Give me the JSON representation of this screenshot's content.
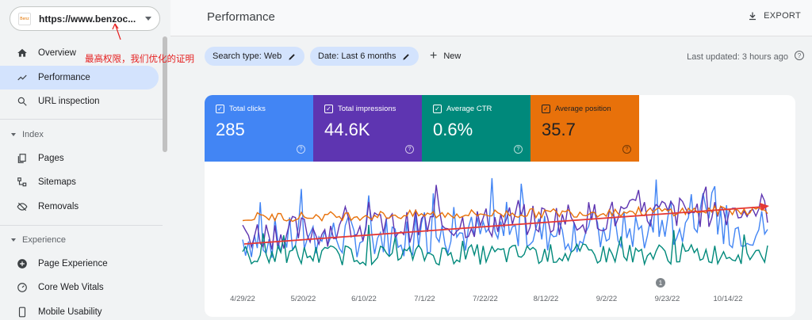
{
  "property": {
    "url": "https://www.benzoc...",
    "favicon_text": "Benz"
  },
  "sidebar": {
    "items": [
      {
        "label": "Overview"
      },
      {
        "label": "Performance"
      },
      {
        "label": "URL inspection"
      }
    ],
    "sections": [
      {
        "label": "Index",
        "items": [
          {
            "label": "Pages"
          },
          {
            "label": "Sitemaps"
          },
          {
            "label": "Removals"
          }
        ]
      },
      {
        "label": "Experience",
        "items": [
          {
            "label": "Page Experience"
          },
          {
            "label": "Core Web Vitals"
          },
          {
            "label": "Mobile Usability"
          }
        ]
      }
    ]
  },
  "header": {
    "title": "Performance",
    "export_label": "EXPORT"
  },
  "annotation": "最高权限，我们优化的证明",
  "filters": {
    "search_type": "Search type: Web",
    "date": "Date: Last 6 months",
    "new_label": "New",
    "last_updated": "Last updated: 3 hours ago"
  },
  "metrics": [
    {
      "label": "Total clicks",
      "value": "285",
      "color": "#4285f4"
    },
    {
      "label": "Total impressions",
      "value": "44.6K",
      "color": "#5e35b1"
    },
    {
      "label": "Average CTR",
      "value": "0.6%",
      "color": "#00897b"
    },
    {
      "label": "Average position",
      "value": "35.7",
      "color": "#e8710a"
    }
  ],
  "chart_data": {
    "type": "line",
    "x_ticks": [
      "4/29/22",
      "5/20/22",
      "6/10/22",
      "7/1/22",
      "7/22/22",
      "8/12/22",
      "9/2/22",
      "9/23/22",
      "10/14/22"
    ],
    "series": [
      {
        "color": "#4285f4"
      },
      {
        "color": "#5e35b1"
      },
      {
        "color": "#00897b"
      },
      {
        "color": "#e8710a"
      }
    ],
    "annotation_marker": "1",
    "trend_arrow_color": "#e53935"
  }
}
